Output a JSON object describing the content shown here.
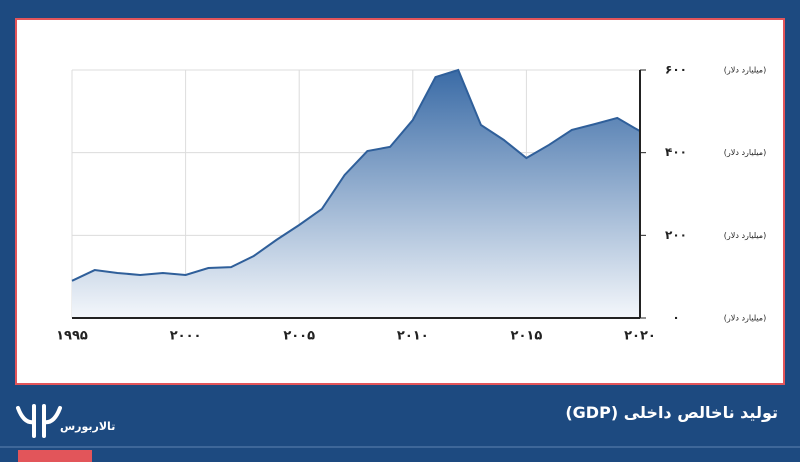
{
  "brand": "تالاربورس",
  "chart_data": {
    "type": "area",
    "title": "تولید ناخالص داخلی (GDP)",
    "x": [
      1995,
      1996,
      1997,
      1998,
      1999,
      2000,
      2001,
      2002,
      2003,
      2004,
      2005,
      2006,
      2007,
      2008,
      2009,
      2010,
      2011,
      2012,
      2013,
      2014,
      2015,
      2016,
      2017,
      2018,
      2019,
      2020
    ],
    "values": [
      90,
      116,
      109,
      104,
      109,
      104,
      121,
      123,
      150,
      189,
      225,
      264,
      346,
      404,
      414,
      479,
      583,
      600,
      467,
      431,
      387,
      419,
      455,
      469,
      484,
      452
    ],
    "color": "#2f5f9a",
    "xlim": [
      1995,
      2020
    ],
    "ylim": [
      0,
      600
    ],
    "xticks": [
      {
        "value": 1995,
        "label": "۱۹۹۵"
      },
      {
        "value": 2000,
        "label": "۲۰۰۰"
      },
      {
        "value": 2005,
        "label": "۲۰۰۵"
      },
      {
        "value": 2010,
        "label": "۲۰۱۰"
      },
      {
        "value": 2015,
        "label": "۲۰۱۵"
      },
      {
        "value": 2020,
        "label": "۲۰۲۰"
      }
    ],
    "yticks": [
      {
        "value": 0,
        "label": "۰",
        "unit": "(میلیارد دلار)"
      },
      {
        "value": 200,
        "label": "۲۰۰",
        "unit": "(میلیارد دلار)"
      },
      {
        "value": 400,
        "label": "۴۰۰",
        "unit": "(میلیارد دلار)"
      },
      {
        "value": 600,
        "label": "۶۰۰",
        "unit": "(میلیارد دلار)"
      }
    ],
    "grid": true
  }
}
